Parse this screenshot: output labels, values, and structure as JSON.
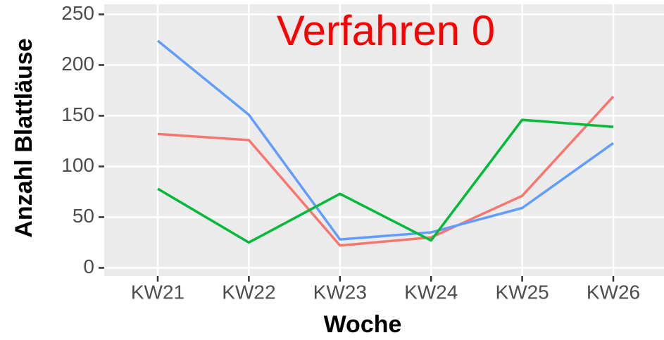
{
  "chart_data": {
    "type": "line",
    "title": "Verfahren 0",
    "title_color": "#ff0000",
    "x_label": "Woche",
    "y_label": "Anzahl Blattläuse",
    "categories": [
      "KW21",
      "KW22",
      "KW23",
      "KW24",
      "KW25",
      "KW26"
    ],
    "series": [
      {
        "color": "#F8766D",
        "values": [
          132,
          126,
          22,
          30,
          71,
          169
        ]
      },
      {
        "color": "#619CFF",
        "values": [
          224,
          151,
          28,
          35,
          59,
          123
        ]
      },
      {
        "color": "#00BA38",
        "values": [
          78,
          25,
          73,
          27,
          146,
          139
        ]
      }
    ],
    "ylim": [
      -8,
      260
    ],
    "yticks": [
      0,
      50,
      100,
      150,
      200,
      250
    ],
    "grid": true
  }
}
